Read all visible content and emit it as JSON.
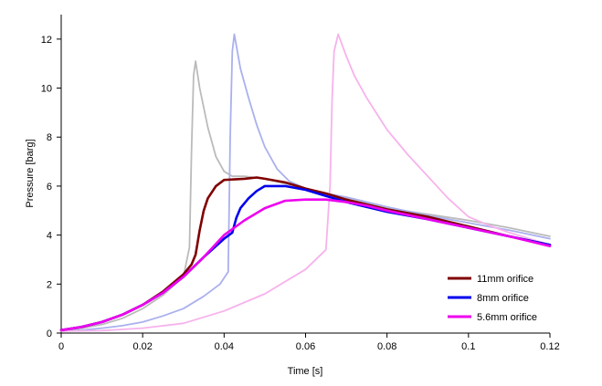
{
  "chart_data": {
    "type": "line",
    "title": "",
    "xlabel": "Time [s]",
    "ylabel": "Pressure [barg]",
    "xlim": [
      0,
      0.12
    ],
    "ylim": [
      0,
      13
    ],
    "x_ticks": [
      0,
      0.02,
      0.04,
      0.06,
      0.08,
      0.1,
      0.12
    ],
    "x_tick_labels": [
      "0",
      "0.02",
      "0.04",
      "0.06",
      "0.08",
      "0.1",
      "0.12"
    ],
    "y_ticks": [
      0,
      2,
      4,
      6,
      8,
      10,
      12
    ],
    "y_tick_labels": [
      "0",
      "2",
      "4",
      "6",
      "8",
      "10",
      "12"
    ],
    "grid": false,
    "legend_position": "bottom-right",
    "series": [
      {
        "name": "",
        "color": "#bbbbbb",
        "x": [
          0,
          0.005,
          0.01,
          0.015,
          0.02,
          0.025,
          0.03,
          0.0315,
          0.032,
          0.0325,
          0.033,
          0.034,
          0.036,
          0.038,
          0.04,
          0.042,
          0.045,
          0.05,
          0.055,
          0.06,
          0.065,
          0.07,
          0.08,
          0.09,
          0.1,
          0.11,
          0.12
        ],
        "y": [
          0.1,
          0.2,
          0.35,
          0.6,
          1.0,
          1.55,
          2.3,
          3.5,
          7.5,
          10.5,
          11.1,
          10.0,
          8.4,
          7.2,
          6.6,
          6.4,
          6.4,
          6.3,
          6.1,
          5.9,
          5.7,
          5.5,
          5.1,
          4.85,
          4.6,
          4.3,
          3.95
        ]
      },
      {
        "name": "",
        "color": "#aab0ee",
        "x": [
          0,
          0.005,
          0.01,
          0.015,
          0.02,
          0.025,
          0.03,
          0.035,
          0.039,
          0.041,
          0.0415,
          0.042,
          0.0425,
          0.044,
          0.046,
          0.048,
          0.05,
          0.053,
          0.056,
          0.06,
          0.065,
          0.07,
          0.08,
          0.09,
          0.1,
          0.11,
          0.12
        ],
        "y": [
          0.08,
          0.12,
          0.2,
          0.3,
          0.45,
          0.7,
          1.0,
          1.5,
          2.0,
          2.5,
          8.0,
          11.5,
          12.2,
          10.8,
          9.6,
          8.5,
          7.6,
          6.7,
          6.2,
          5.9,
          5.7,
          5.55,
          5.15,
          4.8,
          4.5,
          4.2,
          3.85
        ]
      },
      {
        "name": "",
        "color": "#f7b2ec",
        "x": [
          0,
          0.01,
          0.02,
          0.03,
          0.04,
          0.05,
          0.06,
          0.065,
          0.066,
          0.0665,
          0.067,
          0.068,
          0.07,
          0.072,
          0.075,
          0.08,
          0.085,
          0.09,
          0.095,
          0.1,
          0.105,
          0.11,
          0.12
        ],
        "y": [
          0.08,
          0.1,
          0.2,
          0.4,
          0.9,
          1.6,
          2.6,
          3.4,
          6.0,
          9.5,
          11.5,
          12.2,
          11.3,
          10.5,
          9.6,
          8.3,
          7.3,
          6.4,
          5.5,
          4.75,
          4.4,
          4.1,
          3.6
        ]
      },
      {
        "name": "11mm orifice",
        "color": "#800000",
        "x": [
          0,
          0.005,
          0.01,
          0.015,
          0.02,
          0.025,
          0.03,
          0.032,
          0.033,
          0.034,
          0.035,
          0.036,
          0.038,
          0.04,
          0.045,
          0.048,
          0.05,
          0.055,
          0.06,
          0.065,
          0.07,
          0.08,
          0.09,
          0.1,
          0.11,
          0.12
        ],
        "y": [
          0.12,
          0.25,
          0.45,
          0.75,
          1.15,
          1.7,
          2.4,
          2.8,
          3.2,
          4.2,
          5.0,
          5.5,
          6.0,
          6.25,
          6.3,
          6.35,
          6.3,
          6.15,
          5.9,
          5.7,
          5.45,
          5.05,
          4.75,
          4.35,
          3.95,
          3.6
        ]
      },
      {
        "name": "8mm orifice",
        "color": "#0000ee",
        "x": [
          0,
          0.005,
          0.01,
          0.015,
          0.02,
          0.025,
          0.03,
          0.035,
          0.04,
          0.042,
          0.043,
          0.044,
          0.046,
          0.048,
          0.05,
          0.055,
          0.06,
          0.065,
          0.07,
          0.08,
          0.09,
          0.1,
          0.11,
          0.12
        ],
        "y": [
          0.12,
          0.25,
          0.45,
          0.75,
          1.15,
          1.65,
          2.3,
          3.1,
          3.85,
          4.1,
          4.7,
          5.1,
          5.5,
          5.8,
          6.0,
          6.0,
          5.85,
          5.6,
          5.35,
          4.95,
          4.65,
          4.3,
          3.95,
          3.6
        ]
      },
      {
        "name": "5.6mm orifice",
        "color": "#ee00ee",
        "x": [
          0,
          0.005,
          0.01,
          0.015,
          0.02,
          0.025,
          0.03,
          0.035,
          0.04,
          0.045,
          0.05,
          0.055,
          0.06,
          0.065,
          0.07,
          0.075,
          0.08,
          0.09,
          0.1,
          0.11,
          0.12
        ],
        "y": [
          0.12,
          0.25,
          0.45,
          0.75,
          1.15,
          1.65,
          2.3,
          3.1,
          4.0,
          4.6,
          5.1,
          5.4,
          5.45,
          5.45,
          5.35,
          5.2,
          5.0,
          4.65,
          4.3,
          3.95,
          3.55
        ]
      }
    ]
  }
}
